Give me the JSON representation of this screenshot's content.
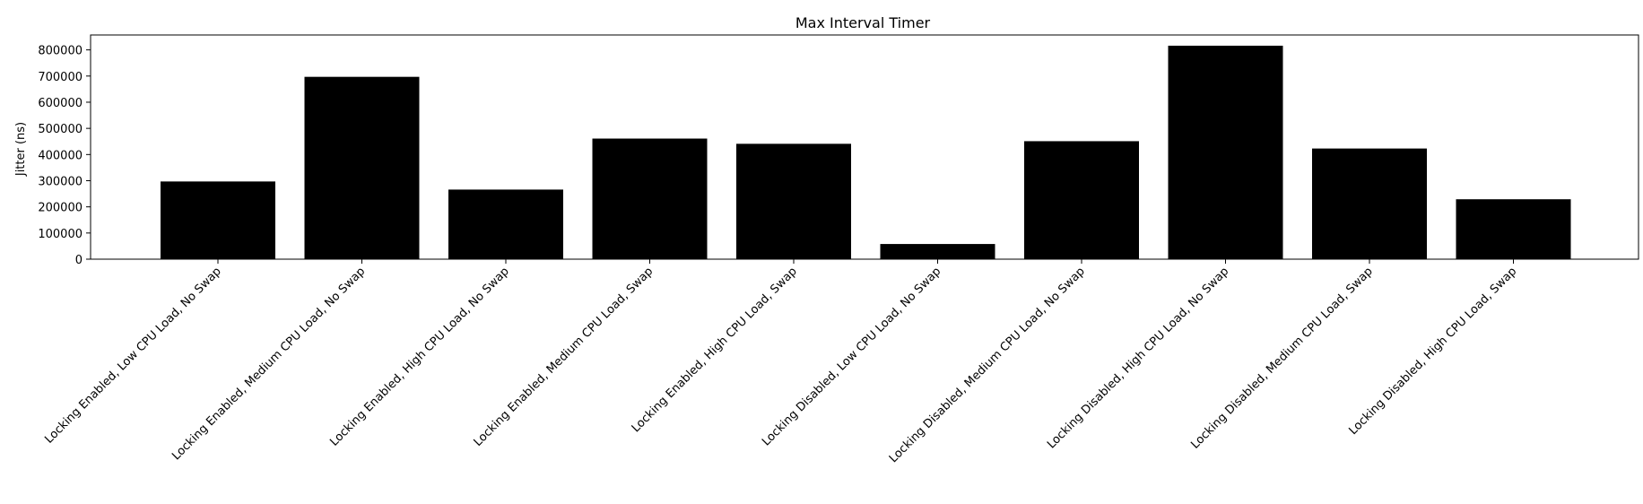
{
  "chart_data": {
    "type": "bar",
    "title": "Max Interval Timer",
    "xlabel": "",
    "ylabel": "Jitter (ns)",
    "categories": [
      "Locking Enabled, Low CPU Load, No Swap",
      "Locking Enabled, Medium CPU Load, No Swap",
      "Locking Enabled, High CPU Load, No Swap",
      "Locking Enabled, Medium CPU Load, Swap",
      "Locking Enabled, High CPU Load, Swap",
      "Locking Disabled, Low CPU Load, No Swap",
      "Locking Disabled, Medium CPU Load, No Swap",
      "Locking Disabled, High CPU Load, No Swap",
      "Locking Disabled, Medium CPU Load, Swap",
      "Locking Disabled, High CPU Load, Swap"
    ],
    "values": [
      297000,
      697000,
      266000,
      461000,
      441000,
      58000,
      451000,
      816000,
      423000,
      229000
    ],
    "ylim": [
      0,
      857000
    ],
    "yticks": [
      0,
      100000,
      200000,
      300000,
      400000,
      500000,
      600000,
      700000,
      800000
    ],
    "ytick_labels": [
      "0",
      "100000",
      "200000",
      "300000",
      "400000",
      "500000",
      "600000",
      "700000",
      "800000"
    ],
    "grid": false,
    "legend": "none",
    "colors": {
      "bar": "#000000",
      "axis": "#000000",
      "background": "#ffffff"
    }
  }
}
